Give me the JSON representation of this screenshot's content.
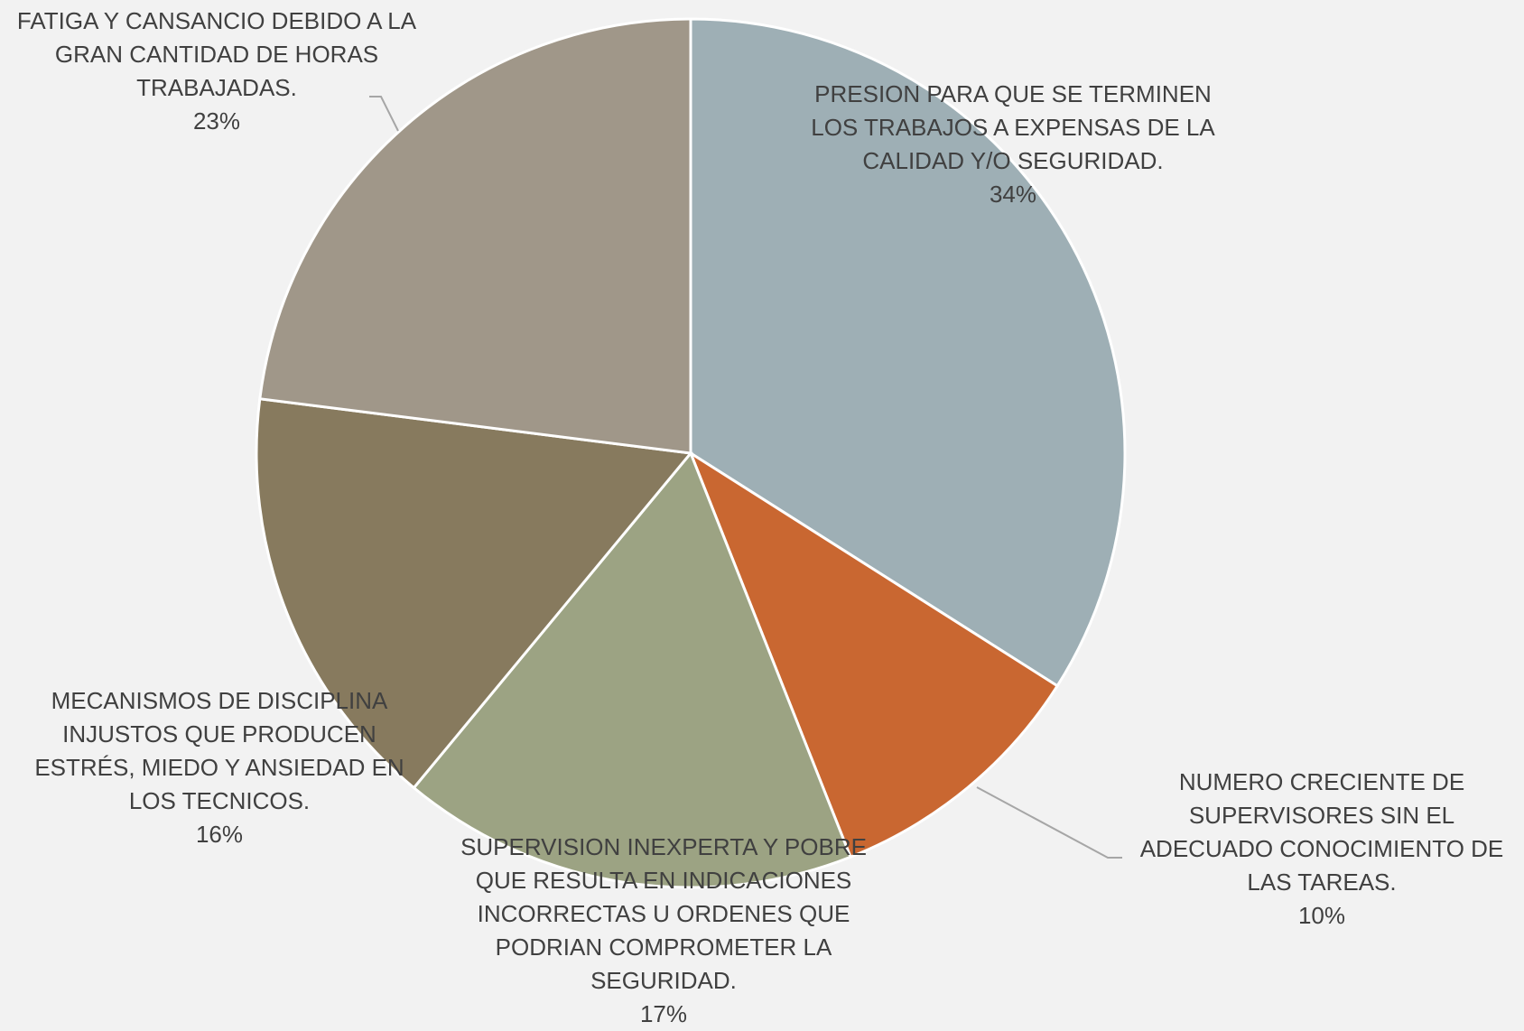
{
  "chart_data": {
    "type": "pie",
    "categories": [
      "PRESION PARA QUE SE TERMINEN LOS TRABAJOS A EXPENSAS DE LA CALIDAD Y/O SEGURIDAD.",
      "NUMERO CRECIENTE DE SUPERVISORES SIN EL ADECUADO CONOCIMIENTO DE LAS TAREAS.",
      "SUPERVISION INEXPERTA Y POBRE QUE RESULTA EN INDICACIONES INCORRECTAS U ORDENES QUE PODRIAN COMPROMETER LA SEGURIDAD.",
      "MECANISMOS DE DISCIPLINA INJUSTOS QUE PRODUCEN ESTRÉS, MIEDO Y ANSIEDAD EN LOS TECNICOS.",
      "FATIGA Y CANSANCIO DEBIDO A LA GRAN CANTIDAD DE HORAS TRABAJADAS."
    ],
    "values": [
      34,
      10,
      17,
      16,
      23
    ],
    "value_labels": [
      "34%",
      "10%",
      "17%",
      "16%",
      "23%"
    ],
    "colors": [
      "#9eafb5",
      "#c96731",
      "#9ca383",
      "#877a5e",
      "#a09789"
    ]
  }
}
